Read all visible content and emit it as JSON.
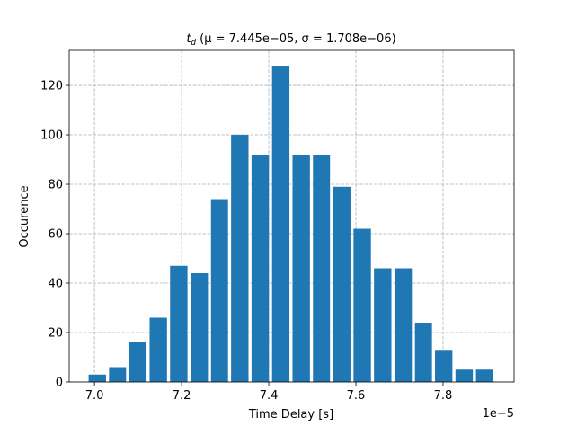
{
  "chart_data": {
    "type": "histogram",
    "title": "t",
    "title_subscript": "d",
    "title_rest": "(μ = 7.445e−05, σ = 1.708e−06)",
    "x_label": "Time Delay [s]",
    "y_label": "Occurence",
    "x_offset_label": "1e−5",
    "bins": [
      6.983,
      7.03,
      7.076,
      7.123,
      7.17,
      7.217,
      7.264,
      7.31,
      7.357,
      7.404,
      7.451,
      7.498,
      7.544,
      7.591,
      7.638,
      7.685,
      7.732,
      7.778,
      7.825,
      7.872,
      7.919
    ],
    "values": [
      3,
      6,
      16,
      26,
      47,
      44,
      74,
      100,
      92,
      128,
      92,
      92,
      79,
      62,
      46,
      46,
      24,
      13,
      5,
      5
    ],
    "rwidth": 0.85,
    "color": "#1f77b4",
    "xlim": [
      6.942,
      7.963
    ],
    "xticks": [
      {
        "value": 7.0,
        "label": "7.0"
      },
      {
        "value": 7.2,
        "label": "7.2"
      },
      {
        "value": 7.4,
        "label": "7.4"
      },
      {
        "value": 7.6,
        "label": "7.6"
      },
      {
        "value": 7.8,
        "label": "7.8"
      }
    ],
    "ylim": [
      0,
      134.2
    ],
    "yticks": [
      0,
      20,
      40,
      60,
      80,
      100,
      120
    ],
    "grid": true
  }
}
